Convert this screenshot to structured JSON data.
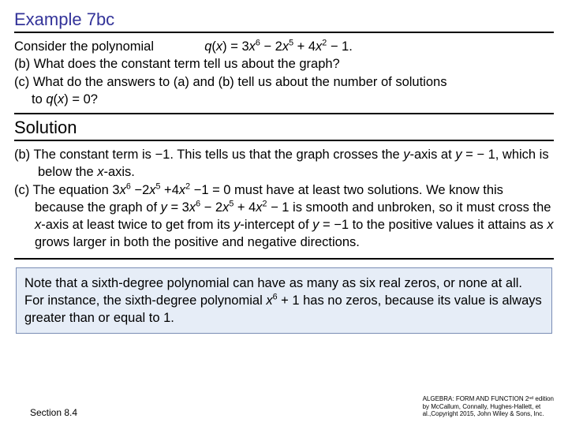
{
  "heading": "Example 7bc",
  "problem": {
    "intro_prefix": "Consider the polynomial",
    "formula": "q(x) = 3x⁶ − 2x⁵ + 4x² − 1.",
    "part_b": "(b) What does the constant term tell us about the graph?",
    "part_c_line1": "(c) What do the answers to (a) and (b) tell us about the number of solutions",
    "part_c_line2": "to q(x) = 0?"
  },
  "solution_heading": "Solution",
  "solution": {
    "b_text": "(b) The constant term is −1. This tells us that the graph crosses the y-axis at y = − 1, which is below the x-axis.",
    "c_text": "(c) The equation 3x⁶ −2x⁵ +4x² −1 = 0 must have at least two solutions. We know this because the graph of y = 3x⁶ − 2x⁵ + 4x² − 1 is smooth and unbroken, so it must cross the x-axis at least twice to get from its y-intercept of y = −1 to the positive values it attains as x grows larger in both the positive and negative directions."
  },
  "note": "Note that a sixth-degree polynomial can have as many as six real zeros, or none at all. For instance, the sixth-degree polynomial x⁶ + 1 has no zeros, because its value is always greater than or equal to 1.",
  "footer": {
    "section": "Section 8.4",
    "credit_line1": "ALGEBRA: FORM AND FUNCTION 2ⁿᵈ edition",
    "credit_line2": "by McCallum, Connally, Hughes-Hallett, et",
    "credit_line3": "al.,Copyright 2015, John Wiley & Sons, Inc."
  }
}
